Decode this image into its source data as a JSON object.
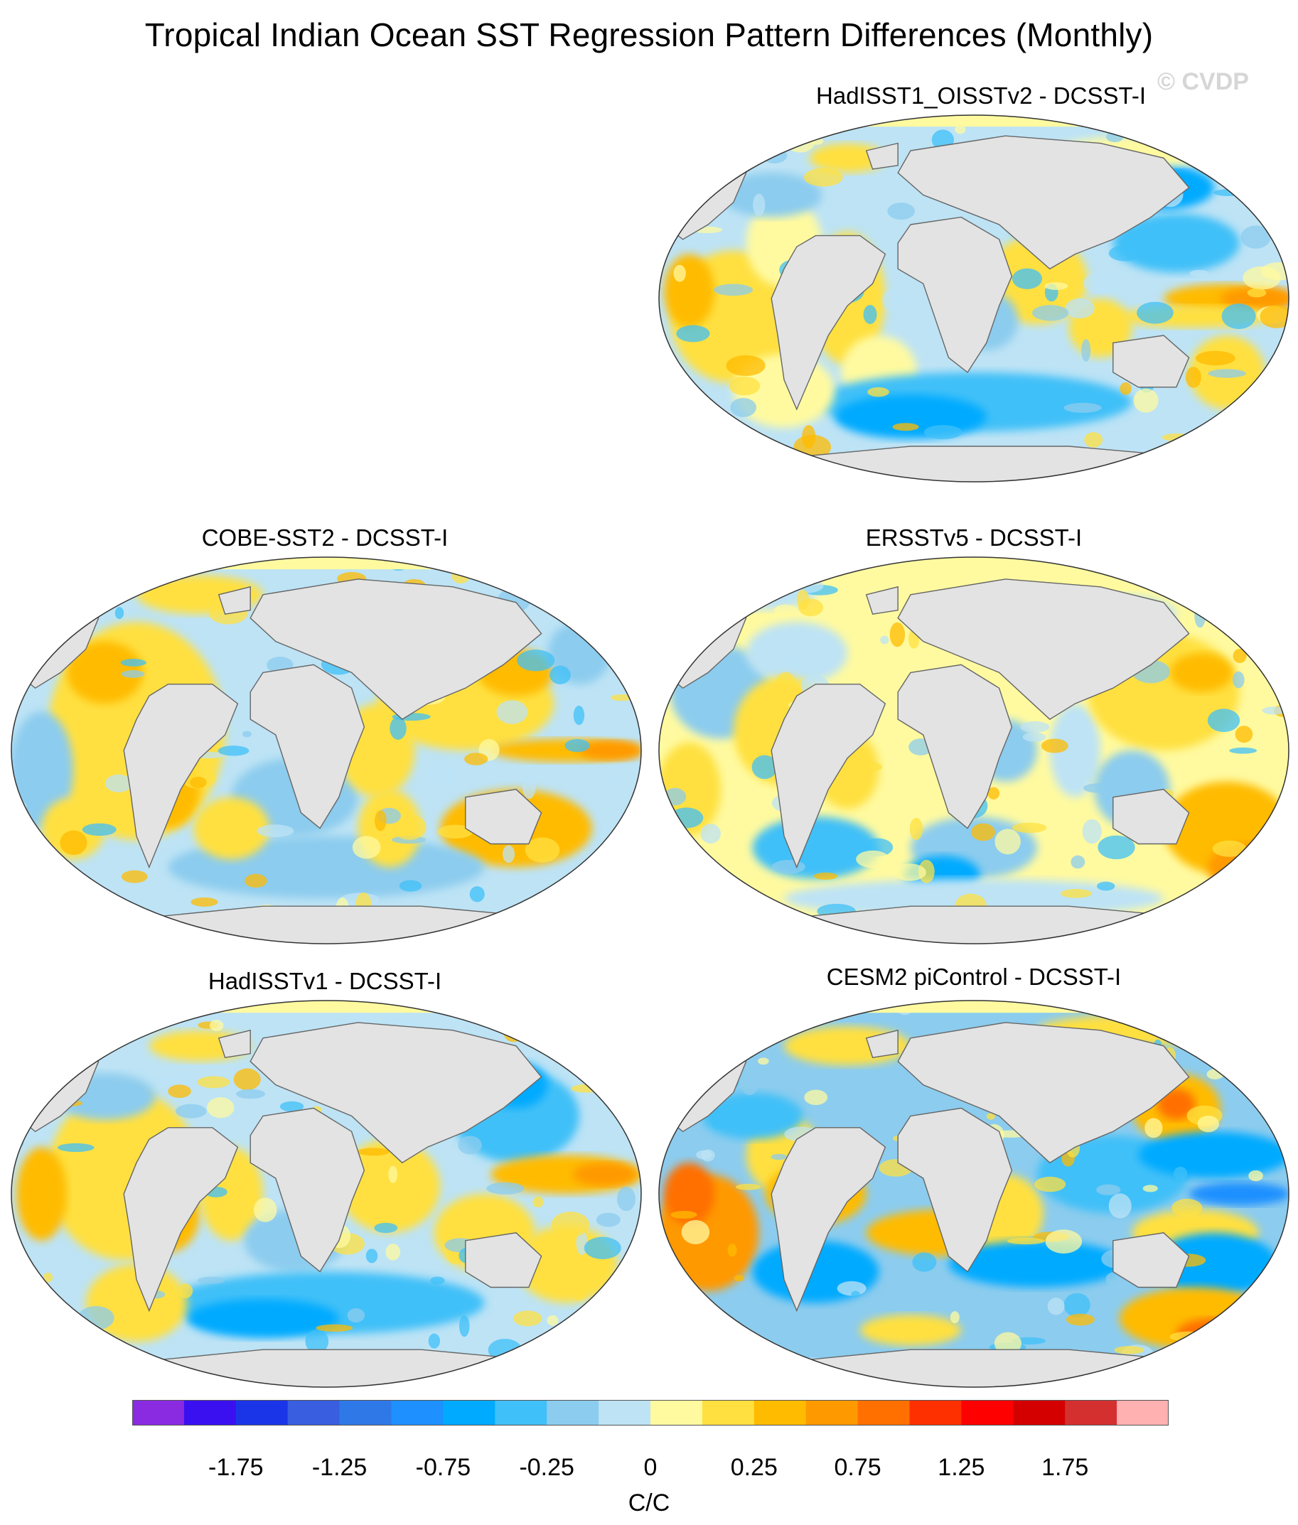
{
  "title": "Tropical Indian Ocean SST Regression Pattern Differences (Monthly)",
  "watermark": "© CVDP",
  "panels": [
    {
      "title": "HadISST1_OISSTv2 - DCSST-I",
      "pattern": "hadoi"
    },
    {
      "title": "COBE-SST2 - DCSST-I",
      "pattern": "cobe"
    },
    {
      "title": "ERSSTv5 - DCSST-I",
      "pattern": "ersst"
    },
    {
      "title": "HadISSTv1 - DCSST-I",
      "pattern": "hadv1"
    },
    {
      "title": "CESM2 piControl - DCSST-I",
      "pattern": "cesm"
    }
  ],
  "colorbar": {
    "units": "C/C",
    "colors": [
      "#8a2be2",
      "#3a10f0",
      "#1a35e8",
      "#3a5ee0",
      "#2f78e8",
      "#1e90ff",
      "#00aaff",
      "#40c0f8",
      "#8cccee",
      "#bde3f5",
      "#fffaa0",
      "#ffe040",
      "#ffbb00",
      "#ff9900",
      "#ff7000",
      "#ff3000",
      "#ff0000",
      "#d40000",
      "#d43030",
      "#ffb0b0"
    ],
    "tick_labels": [
      "-1.75",
      "-1.25",
      "-0.75",
      "-0.25",
      "0",
      "0.25",
      "0.75",
      "1.25",
      "1.75"
    ]
  }
}
